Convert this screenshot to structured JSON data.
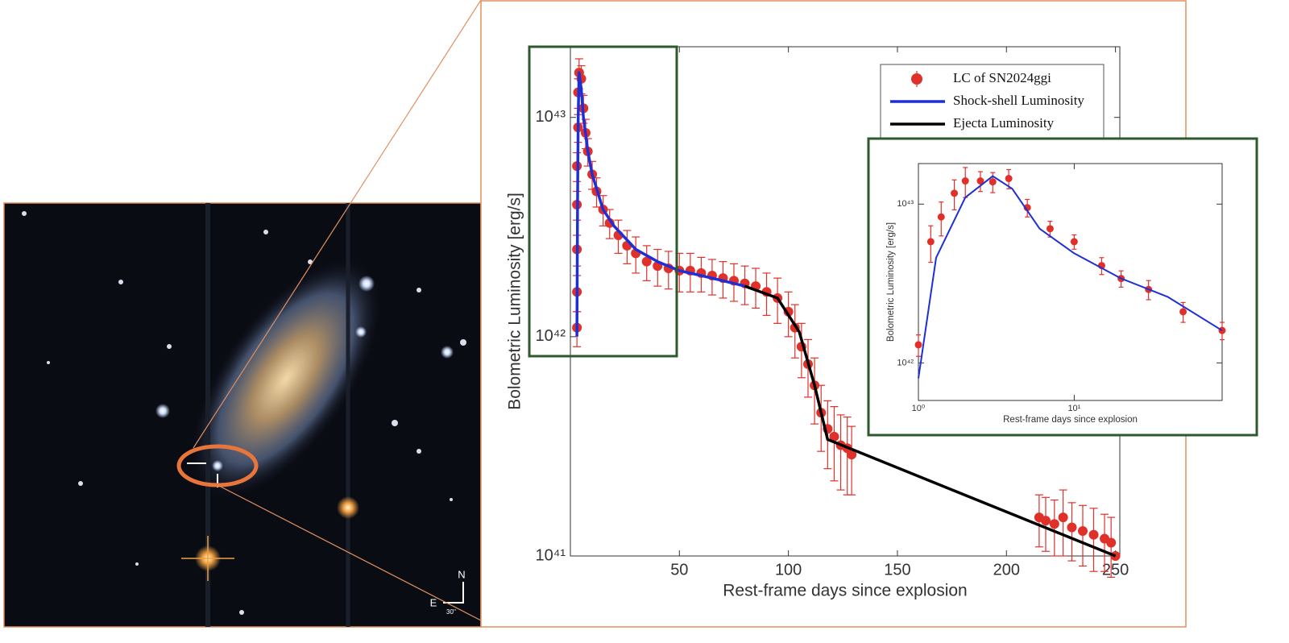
{
  "image": {
    "north": "N",
    "east": "E",
    "scale": "30''"
  },
  "chart_data": [
    {
      "type": "line",
      "xlabel": "Rest-frame days since explosion",
      "ylabel": "Bolometric Luminosity [erg/s]",
      "xlim": [
        0,
        252
      ],
      "xticks": [
        50,
        100,
        150,
        200,
        250
      ],
      "ylim": [
        1e+41,
        2.1e+43
      ],
      "ylog": true,
      "yticks": [
        {
          "value": 1e+41,
          "label": "10⁴¹"
        },
        {
          "value": 1e+42,
          "label": "10⁴²"
        },
        {
          "value": 1e+43,
          "label": "10⁴³"
        }
      ],
      "legend": "upper right",
      "series": [
        {
          "name": "LC of SN2024ggi",
          "color": "#e0302a",
          "x": [
            3,
            3,
            3,
            3,
            3,
            3.5,
            3.5,
            4,
            5,
            6,
            7,
            8,
            10,
            12,
            15,
            18,
            22,
            26,
            30,
            35,
            40,
            45,
            50,
            55,
            60,
            65,
            70,
            75,
            80,
            85,
            90,
            95,
            100,
            103,
            106,
            109,
            112,
            115,
            118,
            121,
            124,
            127,
            129,
            215,
            218,
            222,
            226,
            230,
            235,
            240,
            245,
            248,
            250
          ],
          "values": [
            1.1e+42,
            1.6e+42,
            2.5e+42,
            4e+42,
            6e+42,
            9e+42,
            1.3e+43,
            1.6e+43,
            1.5e+43,
            1.1e+43,
            8.5e+42,
            7e+42,
            5.5e+42,
            4.6e+42,
            3.8e+42,
            3.3e+42,
            2.9e+42,
            2.6e+42,
            2.4e+42,
            2.2e+42,
            2.1e+42,
            2.05e+42,
            2e+42,
            2e+42,
            1.95e+42,
            1.9e+42,
            1.85e+42,
            1.8e+42,
            1.75e+42,
            1.7e+42,
            1.6e+42,
            1.5e+42,
            1.3e+42,
            1.1e+42,
            9e+41,
            7.5e+41,
            6e+41,
            4.5e+41,
            3.8e+41,
            3.5e+41,
            3.2e+41,
            3.1e+41,
            2.9e+41,
            1.5e+41,
            1.45e+41,
            1.4e+41,
            1.5e+41,
            1.35e+41,
            1.3e+41,
            1.25e+41,
            1.2e+41,
            1.15e+41,
            1e+41
          ],
          "errors": [
            2e+41,
            3e+41,
            4e+41,
            6e+41,
            9e+41,
            1.3e+42,
            2e+42,
            2.5e+42,
            2.2e+42,
            1.6e+42,
            1.3e+42,
            1e+42,
            8e+41,
            7e+41,
            6e+41,
            5e+41,
            5e+41,
            4.5e+41,
            4.5e+41,
            4e+41,
            4e+41,
            4e+41,
            4e+41,
            4e+41,
            3.5e+41,
            3.5e+41,
            3.5e+41,
            3.5e+41,
            3.5e+41,
            3.5e+41,
            3.5e+41,
            3.5e+41,
            3e+41,
            3e+41,
            2.5e+41,
            2.2e+41,
            2e+41,
            1.5e+41,
            1.3e+41,
            1.3e+41,
            1.2e+41,
            1.2e+41,
            1e+41,
            4e+40,
            4e+40,
            4e+40,
            5e+40,
            4e+40,
            4e+40,
            4e+40,
            3.5e+40,
            3.5e+40,
            0
          ]
        },
        {
          "name": "Shock-shell Luminosity",
          "color": "#1f2fd6",
          "x": [
            3,
            3.3,
            3.6,
            4,
            5,
            6,
            8,
            10,
            15,
            20,
            30,
            40,
            50,
            60,
            70,
            80
          ],
          "values": [
            1e+42,
            4e+42,
            1e+43,
            1.6e+43,
            1.35e+43,
            1e+43,
            7e+42,
            5.5e+42,
            3.8e+42,
            3.2e+42,
            2.5e+42,
            2.2e+42,
            2e+42,
            1.9e+42,
            1.8e+42,
            1.7e+42
          ]
        },
        {
          "name": "Ejecta Luminosity",
          "color": "#000000",
          "x": [
            80,
            95,
            105,
            112,
            118,
            250
          ],
          "values": [
            1.7e+42,
            1.5e+42,
            1.05e+42,
            6e+41,
            3.4e+41,
            1e+41
          ]
        }
      ]
    },
    {
      "type": "line",
      "xlabel": "Rest-frame days since explosion",
      "ylabel": "Bolometric Luminosity [erg/s]",
      "xlim": [
        1,
        89
      ],
      "xlog": true,
      "xticks": [
        {
          "value": 1,
          "label": "10⁰"
        },
        {
          "value": 10,
          "label": "10¹"
        }
      ],
      "ylim": [
        5.8e+41,
        1.8e+43
      ],
      "ylog": true,
      "yticks": [
        {
          "value": 1e+42,
          "label": "10⁴²"
        },
        {
          "value": 1e+43,
          "label": "10⁴³"
        }
      ],
      "series": [
        {
          "name": "LC of SN2024ggi",
          "color": "#e0302a",
          "x": [
            1,
            1.2,
            1.4,
            1.7,
            2,
            2.5,
            3,
            3.8,
            5,
            7,
            10,
            15,
            20,
            30,
            50,
            89
          ],
          "values": [
            1.3e+42,
            5.8e+42,
            8.3e+42,
            1.17e+43,
            1.4e+43,
            1.4e+43,
            1.38e+43,
            1.45e+43,
            9.5e+42,
            7e+42,
            5.8e+42,
            4.1e+42,
            3.4e+42,
            2.9e+42,
            2.1e+42,
            1.6e+42
          ],
          "errors": [
            2e+41,
            1.5e+42,
            2e+42,
            2.5e+42,
            3e+42,
            2e+42,
            2e+42,
            2e+42,
            1.2e+42,
            8e+41,
            6e+41,
            5e+41,
            4e+41,
            4e+41,
            3e+41,
            2e+41
          ]
        },
        {
          "name": "Shock-shell Luminosity",
          "color": "#1f2fd6",
          "x": [
            1,
            1.3,
            2,
            3,
            4,
            6,
            10,
            20,
            40,
            89
          ],
          "values": [
            8e+41,
            4.6e+42,
            1.1e+43,
            1.5e+43,
            1.25e+43,
            7e+42,
            4.9e+42,
            3.4e+42,
            2.6e+42,
            1.6e+42
          ]
        }
      ]
    }
  ]
}
